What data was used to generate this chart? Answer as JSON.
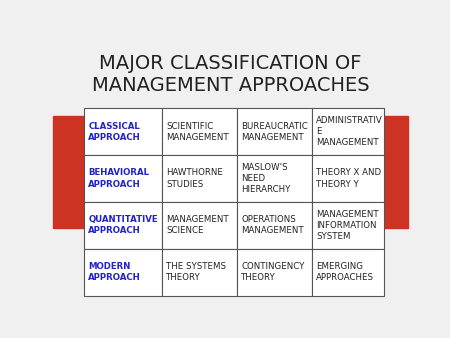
{
  "title": "MAJOR CLASSIFICATION OF\nMANAGEMENT APPROACHES",
  "title_fontsize": 14,
  "title_color": "#222222",
  "background_color": "#f0f0f0",
  "table_border_color": "#555555",
  "red_rect_color": "#cc3322",
  "blue_text_color": "#2222cc",
  "black_text_color": "#222222",
  "cell_bg_color": "#ffffff",
  "rows": [
    [
      "CLASSICAL\nAPPROACH",
      "SCIENTIFIC\nMANAGEMENT",
      "BUREAUCRATIC\nMANAGEMENT",
      "ADMINISTRATIV\nE\nMANAGEMENT"
    ],
    [
      "BEHAVIORAL\nAPPROACH",
      "HAWTHORNE\nSTUDIES",
      "MASLOW'S\nNEED\nHIERARCHY",
      "THEORY X AND\nTHEORY Y"
    ],
    [
      "QUANTITATIVE\nAPPROACH",
      "MANAGEMENT\nSCIENCE",
      "OPERATIONS\nMANAGEMENT",
      "MANAGEMENT\nINFORMATION\nSYSTEM"
    ],
    [
      "MODERN\nAPPROACH",
      "THE SYSTEMS\nTHEORY",
      "CONTINGENCY\nTHEORY",
      "EMERGING\nAPPROACHES"
    ]
  ],
  "fig_width": 4.5,
  "fig_height": 3.38,
  "dpi": 100
}
